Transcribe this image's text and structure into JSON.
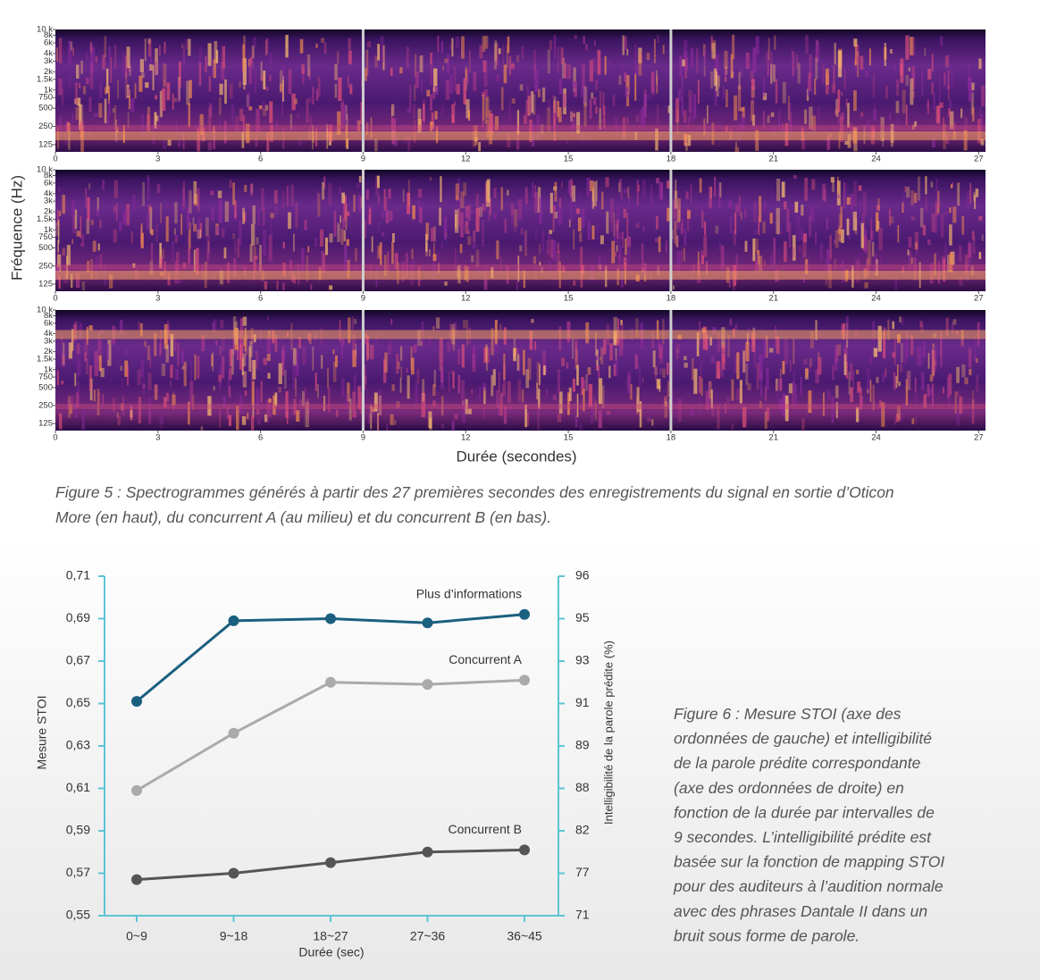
{
  "figure5": {
    "ylabel": "Fréquence (Hz)",
    "xlabel": "Durée (secondes)",
    "caption": [
      "Figure 5 : Spectrogrammes générés à partir des 27 premières secondes des enregistrements du signal en sortie d’Oticon",
      "More (en haut), du concurrent A (au milieu) et du concurrent B (en bas)."
    ]
  },
  "figure6": {
    "caption": [
      "Figure 6 : Mesure STOI (axe des",
      "ordonnées de gauche) et intelligibilité",
      "de la parole prédite correspondante",
      "(axe des ordonnées de droite) en",
      "fonction de la durée par intervalles de",
      "9 secondes. L’intelligibilité prédite est",
      "basée sur la fonction de mapping STOI",
      "pour des auditeurs à l’audition normale",
      "avec des phrases Dantale II dans un",
      "bruit sous forme de parole."
    ]
  },
  "chart_data": [
    {
      "type": "spectrogram",
      "xlim": [
        0,
        27.2
      ],
      "xticks": [
        0,
        3,
        6,
        9,
        12,
        15,
        18,
        21,
        24,
        27
      ],
      "log_y": true,
      "ylim": [
        95,
        10000
      ],
      "yticks": [
        125,
        250,
        500,
        750,
        {
          "value": 1000,
          "label": "1k"
        },
        {
          "value": 1500,
          "label": "1.5k"
        },
        {
          "value": 2000,
          "label": "2k"
        },
        {
          "value": 3000,
          "label": "3k"
        },
        {
          "value": 4000,
          "label": "4k"
        },
        {
          "value": 6000,
          "label": "6k"
        },
        {
          "value": 8000,
          "label": "8k"
        },
        {
          "value": 10000,
          "label": "10 k"
        }
      ],
      "vlines": [
        9,
        18
      ]
    },
    {
      "type": "spectrogram",
      "xlim": [
        0,
        27.2
      ],
      "xticks": [
        0,
        3,
        6,
        9,
        12,
        15,
        18,
        21,
        24,
        27
      ],
      "log_y": true,
      "ylim": [
        95,
        10000
      ],
      "yticks": [
        125,
        250,
        500,
        750,
        {
          "value": 1000,
          "label": "1k"
        },
        {
          "value": 1500,
          "label": "1.5k"
        },
        {
          "value": 2000,
          "label": "2k"
        },
        {
          "value": 3000,
          "label": "3k"
        },
        {
          "value": 4000,
          "label": "4k"
        },
        {
          "value": 6000,
          "label": "6k"
        },
        {
          "value": 8000,
          "label": "8k"
        },
        {
          "value": 10000,
          "label": "10 k"
        }
      ],
      "vlines": [
        9,
        18
      ]
    },
    {
      "type": "spectrogram",
      "xlim": [
        0,
        27.2
      ],
      "xticks": [
        0,
        3,
        6,
        9,
        12,
        15,
        18,
        21,
        24,
        27
      ],
      "log_y": true,
      "ylim": [
        95,
        10000
      ],
      "yticks": [
        125,
        250,
        500,
        750,
        {
          "value": 1000,
          "label": "1k"
        },
        {
          "value": 1500,
          "label": "1.5k"
        },
        {
          "value": 2000,
          "label": "2k"
        },
        {
          "value": 3000,
          "label": "3k"
        },
        {
          "value": 4000,
          "label": "4k"
        },
        {
          "value": 6000,
          "label": "6k"
        },
        {
          "value": 8000,
          "label": "8k"
        },
        {
          "value": 10000,
          "label": "10 k"
        }
      ],
      "vlines": [
        9,
        18
      ]
    },
    {
      "type": "line",
      "xlabel": "Durée (sec)",
      "ylabel": "Mesure STOI",
      "y2label": "Intelligibilité de la parole prédite (%)",
      "categories": [
        "0~9",
        "9~18",
        "18~27",
        "27~36",
        "36~45"
      ],
      "ylim": [
        0.55,
        0.71
      ],
      "yticks": [
        {
          "value": 0.55,
          "label": "0,55"
        },
        {
          "value": 0.57,
          "label": "0,57"
        },
        {
          "value": 0.59,
          "label": "0,59"
        },
        {
          "value": 0.61,
          "label": "0,61"
        },
        {
          "value": 0.63,
          "label": "0,63"
        },
        {
          "value": 0.65,
          "label": "0,65"
        },
        {
          "value": 0.67,
          "label": "0,67"
        },
        {
          "value": 0.69,
          "label": "0,69"
        },
        {
          "value": 0.71,
          "label": "0,71"
        }
      ],
      "y2ticks": [
        71,
        77,
        82,
        88,
        89,
        91,
        93,
        95,
        96
      ],
      "series": [
        {
          "name": "Plus d’informations",
          "color": "#1b5f7f",
          "values": [
            0.651,
            0.689,
            0.69,
            0.688,
            0.692
          ]
        },
        {
          "name": "Concurrent A",
          "color": "#aaaaaa",
          "values": [
            0.609,
            0.636,
            0.66,
            0.659,
            0.661
          ]
        },
        {
          "name": "Concurrent B",
          "color": "#555555",
          "values": [
            0.567,
            0.57,
            0.575,
            0.58,
            0.581
          ]
        }
      ]
    }
  ]
}
